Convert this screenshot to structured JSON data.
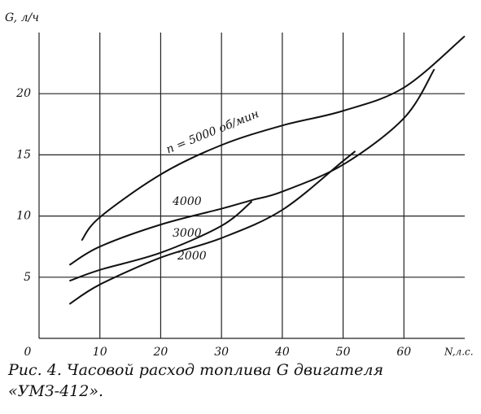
{
  "chart_data": {
    "type": "line",
    "y_label": "G, л/ч",
    "x_label": "N,л.с.",
    "caption": [
      "Рис. 4. Часовой расход топлива G двигателя",
      "«УМЗ-412»."
    ],
    "xlim": [
      0,
      70
    ],
    "ylim": [
      0,
      25
    ],
    "xticks": [
      0,
      10,
      20,
      30,
      40,
      50,
      60
    ],
    "yticks": [
      5,
      10,
      15,
      20
    ],
    "grid": true,
    "series": [
      {
        "name": "n = 5000 об/мин",
        "color": "#111111",
        "x": [
          7,
          10,
          20,
          30,
          40,
          50,
          60,
          70
        ],
        "values": [
          8,
          9.9,
          13.4,
          15.8,
          17.4,
          18.6,
          20.5,
          24.7
        ]
      },
      {
        "name": "4000",
        "color": "#111111",
        "x": [
          5,
          10,
          20,
          30,
          35,
          40,
          50,
          60,
          65
        ],
        "values": [
          6,
          7.5,
          9.3,
          10.6,
          11.3,
          12,
          14.2,
          18,
          22
        ]
      },
      {
        "name": "3000",
        "color": "#111111",
        "x": [
          5,
          10,
          20,
          30,
          35
        ],
        "values": [
          4.7,
          5.6,
          7,
          9.2,
          11.2
        ]
      },
      {
        "name": "2000",
        "color": "#111111",
        "x": [
          5,
          10,
          20,
          30,
          40,
          50,
          52
        ],
        "values": [
          2.8,
          4.4,
          6.6,
          8.2,
          10.5,
          14.5,
          15.3
        ]
      }
    ]
  }
}
